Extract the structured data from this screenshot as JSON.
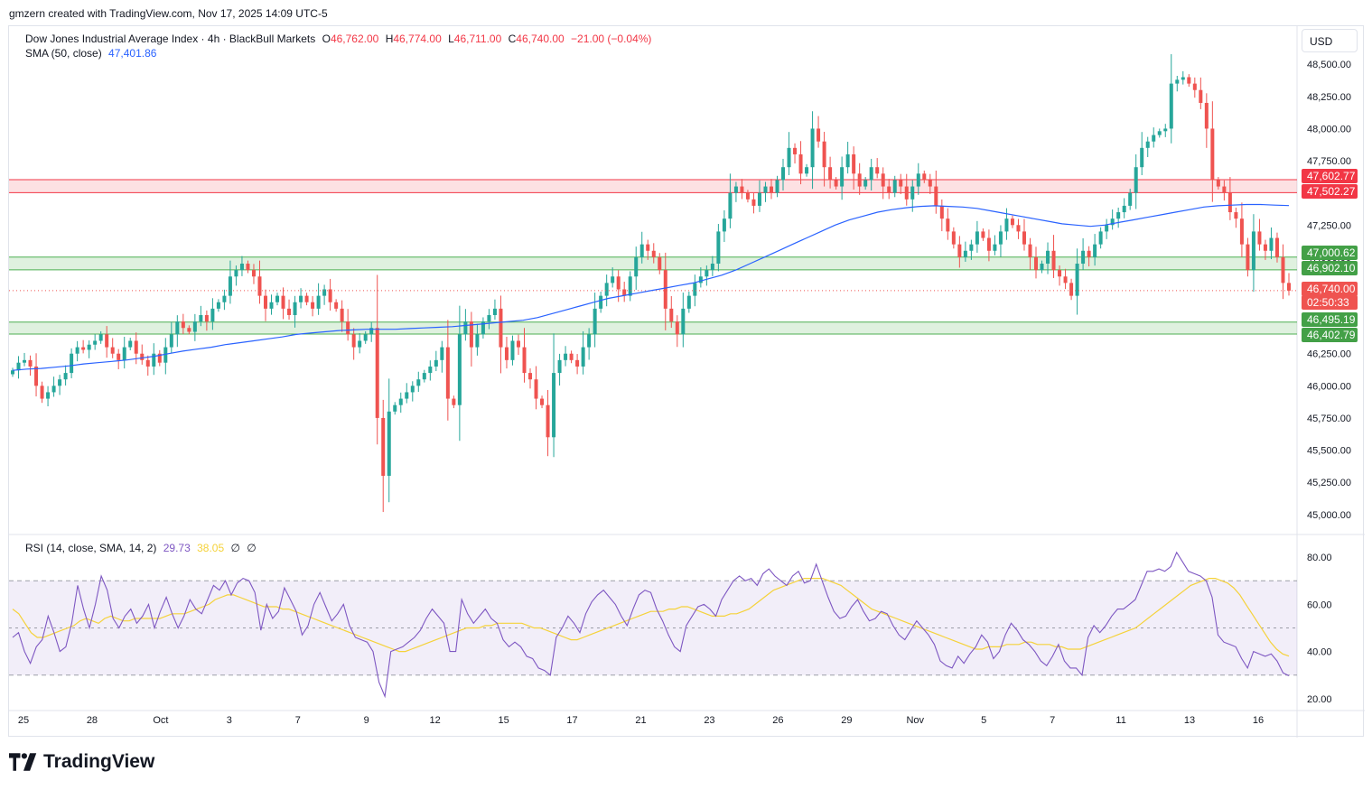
{
  "header": {
    "credit": "gmzern created with TradingView.com, Nov 17, 2025 14:09 UTC-5",
    "symbol": "Dow Jones Industrial Average Index · 4h · BlackBull Markets",
    "open_label": "O",
    "open": "46,762.00",
    "high_label": "H",
    "high": "46,774.00",
    "low_label": "L",
    "low": "46,711.00",
    "close_label": "C",
    "close": "46,740.00",
    "change": "−21.00 (−0.04%)",
    "sma_label": "SMA (50, close)",
    "sma_value": "47,401.86",
    "rsi_label": "RSI (14, close, SMA, 14, 2)",
    "rsi_value": "29.73",
    "rsi_sma_value": "38.05",
    "rsi_div1": "∅",
    "rsi_div2": "∅",
    "currency": "USD"
  },
  "brand": {
    "name": "TradingView"
  },
  "colors": {
    "up": "#26a69a",
    "down": "#ef5350",
    "sma": "#2962ff",
    "rsi": "#7e57c2",
    "rsi_sma": "#f5d23a",
    "resistance": "#f23645",
    "support": "#4caf50"
  },
  "price_tags": {
    "resistance_top": "47,602.77",
    "resistance_bottom": "47,502.27",
    "support1_top": "47,000.62",
    "support1_bottom": "46,902.10",
    "last": "46,740.00",
    "countdown": "02:50:33",
    "support2_top": "46,495.19",
    "support2_bottom": "46,402.79"
  },
  "chart_data": {
    "type": "candlestick",
    "x_labels": [
      "25",
      "28",
      "Oct",
      "3",
      "7",
      "9",
      "12",
      "15",
      "17",
      "21",
      "23",
      "26",
      "29",
      "Nov",
      "5",
      "7",
      "11",
      "13",
      "16"
    ],
    "y_ticks": [
      "48,500.00",
      "48,250.00",
      "48,000.00",
      "47,750.00",
      "47,500.00",
      "47,250.00",
      "47,000.00",
      "46,750.00",
      "46,500.00",
      "46,250.00",
      "46,000.00",
      "45,750.00",
      "45,500.00",
      "45,250.00",
      "45,000.00"
    ],
    "y_tick_values": [
      48500,
      48250,
      48000,
      47750,
      47500,
      47250,
      47000,
      46750,
      46500,
      46250,
      46000,
      45750,
      45500,
      45250,
      45000
    ],
    "ylim": [
      44900,
      48600
    ],
    "zones": [
      {
        "name": "resistance",
        "low": 47502.27,
        "high": 47602.77
      },
      {
        "name": "support-1",
        "low": 46902.1,
        "high": 47000.62
      },
      {
        "name": "support-2",
        "low": 46402.79,
        "high": 46495.19
      }
    ],
    "last_price": 46740,
    "closes": [
      46120,
      46180,
      46200,
      46150,
      46000,
      45900,
      45950,
      46000,
      46050,
      46100,
      46250,
      46300,
      46280,
      46320,
      46350,
      46400,
      46300,
      46250,
      46200,
      46300,
      46350,
      46250,
      46200,
      46150,
      46250,
      46180,
      46300,
      46400,
      46500,
      46450,
      46420,
      46500,
      46550,
      46500,
      46600,
      46650,
      46700,
      46850,
      46900,
      46950,
      46900,
      46850,
      46700,
      46600,
      46650,
      46700,
      46600,
      46550,
      46650,
      46700,
      46650,
      46600,
      46700,
      46750,
      46650,
      46600,
      46500,
      46400,
      46300,
      46350,
      46400,
      46450,
      45750,
      45300,
      45800,
      45850,
      45900,
      45950,
      46000,
      46050,
      46100,
      46150,
      46200,
      46300,
      45900,
      45850,
      46400,
      46500,
      46300,
      46400,
      46500,
      46550,
      46600,
      46300,
      46200,
      46350,
      46300,
      46100,
      46050,
      45900,
      45850,
      45600,
      46100,
      46200,
      46250,
      46200,
      46150,
      46300,
      46400,
      46600,
      46700,
      46800,
      46850,
      46750,
      46700,
      46850,
      47000,
      47100,
      47050,
      47000,
      46900,
      46600,
      46500,
      46400,
      46600,
      46700,
      46800,
      46850,
      46900,
      46950,
      47200,
      47300,
      47500,
      47550,
      47500,
      47450,
      47400,
      47500,
      47550,
      47500,
      47600,
      47700,
      47850,
      47800,
      47650,
      47700,
      48000,
      47900,
      47700,
      47600,
      47550,
      47700,
      47800,
      47650,
      47550,
      47600,
      47700,
      47650,
      47550,
      47500,
      47600,
      47550,
      47450,
      47550,
      47650,
      47600,
      47550,
      47400,
      47300,
      47200,
      47100,
      47000,
      47050,
      47100,
      47200,
      47150,
      47050,
      47100,
      47200,
      47300,
      47250,
      47200,
      47100,
      47000,
      46900,
      46950,
      47050,
      46900,
      46850,
      46800,
      46700,
      46950,
      47050,
      47000,
      47100,
      47200,
      47250,
      47300,
      47350,
      47400,
      47500,
      47700,
      47850,
      47900,
      47950,
      47980,
      48000,
      48350,
      48380,
      48400,
      48350,
      48300,
      48200,
      48000,
      47600,
      47550,
      47500,
      47350,
      47300,
      47100,
      46900,
      47200,
      47100,
      47050,
      47150,
      47000,
      46800,
      46740
    ],
    "sma50": [
      46120,
      46130,
      46135,
      46145,
      46155,
      46170,
      46180,
      46190,
      46200,
      46215,
      46230,
      46250,
      46270,
      46285,
      46300,
      46320,
      46335,
      46350,
      46365,
      46380,
      46400,
      46410,
      46420,
      46430,
      46435,
      46440,
      46440,
      46440,
      46445,
      46450,
      46455,
      46460,
      46470,
      46480,
      46490,
      46500,
      46510,
      46530,
      46560,
      46590,
      46620,
      46650,
      46680,
      46700,
      46720,
      46740,
      46760,
      46780,
      46800,
      46830,
      46860,
      46900,
      46950,
      47000,
      47050,
      47100,
      47150,
      47200,
      47250,
      47290,
      47320,
      47350,
      47370,
      47385,
      47395,
      47400,
      47395,
      47390,
      47380,
      47360,
      47340,
      47320,
      47300,
      47280,
      47260,
      47250,
      47240,
      47250,
      47270,
      47290,
      47310,
      47330,
      47350,
      47370,
      47390,
      47400,
      47405,
      47410,
      47410,
      47405,
      47401.86
    ],
    "rsi_ticks": [
      "80.00",
      "60.00",
      "40.00",
      "20.00"
    ],
    "rsi_tick_values": [
      80,
      60,
      40,
      20
    ],
    "rsi_levels": {
      "upper": 70,
      "middle": 50,
      "lower": 30
    },
    "rsi_ylim": [
      15,
      85
    ],
    "rsi": [
      46,
      48,
      40,
      35,
      42,
      45,
      55,
      48,
      40,
      42,
      52,
      68,
      58,
      50,
      60,
      72,
      66,
      54,
      50,
      55,
      58,
      52,
      55,
      60,
      50,
      57,
      63,
      56,
      50,
      55,
      62,
      58,
      56,
      62,
      68,
      66,
      70,
      64,
      69,
      71,
      70,
      65,
      49,
      60,
      54,
      57,
      67,
      62,
      57,
      47,
      51,
      60,
      65,
      59,
      53,
      56,
      60,
      51,
      46,
      45,
      44,
      40,
      27,
      21,
      40,
      41,
      42,
      44,
      46,
      49,
      54,
      58,
      55,
      52,
      40,
      40,
      62,
      56,
      52,
      55,
      58,
      54,
      52,
      45,
      42,
      44,
      42,
      38,
      37,
      33,
      32,
      30,
      46,
      50,
      55,
      52,
      48,
      56,
      61,
      64,
      66,
      63,
      60,
      55,
      51,
      58,
      64,
      66,
      65,
      58,
      53,
      47,
      42,
      40,
      51,
      55,
      59,
      60,
      58,
      55,
      62,
      66,
      70,
      72,
      70,
      71,
      68,
      73,
      75,
      72,
      70,
      68,
      72,
      74,
      69,
      70,
      77,
      70,
      63,
      57,
      54,
      55,
      59,
      62,
      57,
      53,
      54,
      57,
      56,
      51,
      47,
      45,
      49,
      53,
      50,
      47,
      43,
      36,
      34,
      33,
      38,
      35,
      39,
      42,
      47,
      44,
      37,
      40,
      47,
      52,
      49,
      45,
      43,
      40,
      36,
      34,
      38,
      43,
      36,
      33,
      33,
      30,
      46,
      51,
      48,
      51,
      55,
      58,
      58,
      60,
      62,
      68,
      74,
      74,
      75,
      74,
      76,
      82,
      78,
      74,
      73,
      72,
      70,
      63,
      47,
      44,
      43,
      42,
      37,
      33,
      40,
      39,
      38,
      39,
      36,
      31,
      29.73
    ],
    "rsi_sma": [
      58,
      56,
      52,
      48,
      46,
      46,
      47,
      48,
      49,
      50,
      51,
      53,
      54,
      53,
      52,
      54,
      55,
      54,
      53,
      53,
      54,
      54,
      54,
      54,
      54,
      55,
      56,
      56,
      56,
      57,
      58,
      59,
      60,
      62,
      63,
      64,
      64,
      63,
      62,
      61,
      60,
      59,
      59,
      59,
      58,
      58,
      57,
      56,
      55,
      54,
      53,
      52,
      51,
      50,
      49,
      48,
      47,
      46,
      45,
      44,
      43,
      42,
      41,
      40,
      40,
      41,
      42,
      43,
      44,
      45,
      46,
      47,
      48,
      49,
      50,
      50,
      50,
      51,
      51,
      52,
      52,
      52,
      52,
      52,
      51,
      50,
      50,
      49,
      48,
      47,
      46,
      45,
      45,
      46,
      47,
      48,
      49,
      50,
      51,
      52,
      53,
      54,
      55,
      56,
      57,
      57,
      57,
      58,
      58,
      59,
      59,
      58,
      57,
      56,
      55,
      55,
      55,
      56,
      56,
      57,
      58,
      60,
      62,
      64,
      66,
      67,
      68,
      69,
      70,
      71,
      71,
      71,
      71,
      70,
      69,
      68,
      66,
      64,
      62,
      60,
      58,
      57,
      56,
      55,
      54,
      53,
      52,
      51,
      50,
      49,
      48,
      47,
      46,
      45,
      44,
      43,
      42,
      41,
      41,
      42,
      42,
      42,
      43,
      43,
      43,
      44,
      44,
      43,
      43,
      43,
      42,
      42,
      41,
      41,
      41,
      42,
      43,
      44,
      45,
      46,
      47,
      48,
      49,
      50,
      52,
      54,
      56,
      58,
      60,
      62,
      64,
      66,
      68,
      69,
      70,
      71,
      71,
      70,
      69,
      67,
      64,
      60,
      56,
      52,
      48,
      44,
      41,
      39,
      38.05
    ]
  }
}
